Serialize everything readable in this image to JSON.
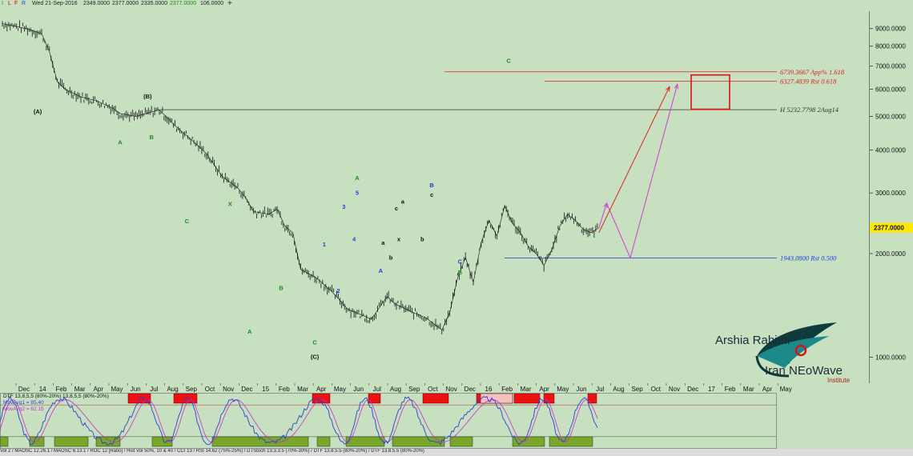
{
  "toolbar": {
    "date": "Wed 21-Sep-2016",
    "open": "2349.0000",
    "high": "2377.0000",
    "low": "2335.0000",
    "close": "2377.0000",
    "volume": "106.0000",
    "flags": [
      "I",
      "L",
      "F",
      "R"
    ],
    "add_icon": "plus-icon"
  },
  "chart_data": {
    "type": "line",
    "scale": "log",
    "ylim": [
      850,
      10000
    ],
    "price_ticks": [
      1000,
      2000,
      3000,
      4000,
      5000,
      6000,
      7000,
      8000,
      9000
    ],
    "price_tick_labels": [
      "1000.0000",
      "2000.0000",
      "3000.0000",
      "4000.0000",
      "5000.0000",
      "6000.0000",
      "7000.0000",
      "8000.0000",
      "9000.0000"
    ],
    "last_price": 2377.0,
    "last_price_label": "2377.0000",
    "date_labels": [
      "Dec",
      "14",
      "Feb",
      "Mar",
      "Apr",
      "May",
      "Jun",
      "Jul",
      "Aug",
      "Sep",
      "Oct",
      "Nov",
      "Dec",
      "15",
      "Feb",
      "Mar",
      "Apr",
      "May",
      "Jun",
      "Jul",
      "Aug",
      "Sep",
      "Oct",
      "Nov",
      "Dec",
      "16",
      "Feb",
      "Mar",
      "Apr",
      "May",
      "Jun",
      "Jul",
      "Aug",
      "Sep",
      "Oct",
      "Nov",
      "Dec",
      "17",
      "Feb",
      "Mar",
      "Apr",
      "May"
    ],
    "price_path": [
      {
        "t": 0,
        "v": 9300
      },
      {
        "t": 3,
        "v": 9000
      },
      {
        "t": 5,
        "v": 8700
      },
      {
        "t": 6,
        "v": 7700
      },
      {
        "t": 7,
        "v": 6300
      },
      {
        "t": 8,
        "v": 6000
      },
      {
        "t": 10,
        "v": 5700
      },
      {
        "t": 12,
        "v": 5550
      },
      {
        "t": 14,
        "v": 5300
      },
      {
        "t": 15,
        "v": 5100
      },
      {
        "t": 17,
        "v": 5000
      },
      {
        "t": 20,
        "v": 5230
      },
      {
        "t": 22,
        "v": 4700
      },
      {
        "t": 24,
        "v": 4300
      },
      {
        "t": 26,
        "v": 3900
      },
      {
        "t": 28,
        "v": 3350
      },
      {
        "t": 30,
        "v": 3100
      },
      {
        "t": 31,
        "v": 2900
      },
      {
        "t": 32,
        "v": 2650
      },
      {
        "t": 34,
        "v": 2600
      },
      {
        "t": 35,
        "v": 2700
      },
      {
        "t": 36,
        "v": 2400
      },
      {
        "t": 37,
        "v": 2300
      },
      {
        "t": 38,
        "v": 1800
      },
      {
        "t": 40,
        "v": 1700
      },
      {
        "t": 42,
        "v": 1550
      },
      {
        "t": 44,
        "v": 1380
      },
      {
        "t": 46,
        "v": 1320
      },
      {
        "t": 47,
        "v": 1290
      },
      {
        "t": 49,
        "v": 1500
      },
      {
        "t": 50,
        "v": 1430
      },
      {
        "t": 52,
        "v": 1360
      },
      {
        "t": 54,
        "v": 1300
      },
      {
        "t": 56,
        "v": 1200
      },
      {
        "t": 57,
        "v": 1350
      },
      {
        "t": 58,
        "v": 1700
      },
      {
        "t": 59,
        "v": 1950
      },
      {
        "t": 60,
        "v": 1650
      },
      {
        "t": 61,
        "v": 2150
      },
      {
        "t": 62,
        "v": 2500
      },
      {
        "t": 63,
        "v": 2250
      },
      {
        "t": 64,
        "v": 2750
      },
      {
        "t": 65,
        "v": 2450
      },
      {
        "t": 66,
        "v": 2300
      },
      {
        "t": 67,
        "v": 2100
      },
      {
        "t": 68,
        "v": 2000
      },
      {
        "t": 69,
        "v": 1850
      },
      {
        "t": 70,
        "v": 2050
      },
      {
        "t": 71,
        "v": 2400
      },
      {
        "t": 72,
        "v": 2600
      },
      {
        "t": 73,
        "v": 2500
      },
      {
        "t": 74,
        "v": 2350
      },
      {
        "t": 75,
        "v": 2300
      },
      {
        "t": 76,
        "v": 2377
      }
    ],
    "projection": [
      {
        "t": 76,
        "v": 2377
      },
      {
        "t": 77,
        "v": 2800
      },
      {
        "t": 80,
        "v": 1943
      },
      {
        "t": 86,
        "v": 6200
      }
    ],
    "alt_projection": [
      {
        "t": 76,
        "v": 2300
      },
      {
        "t": 85,
        "v": 6100
      }
    ],
    "levels": [
      {
        "label": "6739.3667 App% 1.618",
        "value": 6740,
        "color": "#e0201a"
      },
      {
        "label": "6327.4839 Rst 0.618",
        "value": 6327,
        "color": "#e0201a"
      },
      {
        "label": "H 5232.7798 2Aug14",
        "value": 5233,
        "color": "#333333"
      },
      {
        "label": "1943.0800 Rst 0.500",
        "value": 1943,
        "color": "#1a3fdc"
      }
    ],
    "target_box": {
      "v_low": 5250,
      "v_high": 6600
    },
    "wave_labels": [
      {
        "text": "(A)",
        "t": 4.5,
        "v": 5100,
        "color": "#111111"
      },
      {
        "text": "(B)",
        "t": 18.5,
        "v": 5650,
        "color": "#111111"
      },
      {
        "text": "A",
        "t": 15,
        "v": 4150,
        "color": "#1e8a1e"
      },
      {
        "text": "B",
        "t": 19,
        "v": 4300,
        "color": "#1e8a1e"
      },
      {
        "text": "C",
        "t": 23.5,
        "v": 2450,
        "color": "#1e8a1e"
      },
      {
        "text": "X",
        "t": 29,
        "v": 2750,
        "color": "#1e8a1e"
      },
      {
        "text": "A",
        "t": 31.5,
        "v": 1170,
        "color": "#1e8a1e"
      },
      {
        "text": "B",
        "t": 35.5,
        "v": 1570,
        "color": "#1e8a1e"
      },
      {
        "text": "C",
        "t": 39.8,
        "v": 1090,
        "color": "#1e8a1e"
      },
      {
        "text": "(C)",
        "t": 39.8,
        "v": 990,
        "color": "#111111"
      },
      {
        "text": "1",
        "t": 41,
        "v": 2100,
        "color": "#1a3fdc"
      },
      {
        "text": "2",
        "t": 42.8,
        "v": 1540,
        "color": "#1a3fdc"
      },
      {
        "text": "3",
        "t": 43.5,
        "v": 2700,
        "color": "#1a3fdc"
      },
      {
        "text": "4",
        "t": 44.8,
        "v": 2170,
        "color": "#1a3fdc"
      },
      {
        "text": "5",
        "t": 45.2,
        "v": 2960,
        "color": "#1a3fdc"
      },
      {
        "text": "A",
        "t": 45.2,
        "v": 3270,
        "color": "#1e8a1e"
      },
      {
        "text": "a",
        "t": 48.5,
        "v": 2120,
        "color": "#111111"
      },
      {
        "text": "b",
        "t": 49.5,
        "v": 1920,
        "color": "#111111"
      },
      {
        "text": "A",
        "t": 48.2,
        "v": 1760,
        "color": "#1a3fdc"
      },
      {
        "text": "c",
        "t": 50.2,
        "v": 2670,
        "color": "#111111"
      },
      {
        "text": "a",
        "t": 51,
        "v": 2790,
        "color": "#111111"
      },
      {
        "text": "x",
        "t": 50.5,
        "v": 2170,
        "color": "#111111"
      },
      {
        "text": "b",
        "t": 53.5,
        "v": 2170,
        "color": "#111111"
      },
      {
        "text": "c",
        "t": 54.7,
        "v": 2920,
        "color": "#111111"
      },
      {
        "text": "B",
        "t": 54.7,
        "v": 3120,
        "color": "#1a3fdc"
      },
      {
        "text": "C",
        "t": 58.3,
        "v": 1870,
        "color": "#1a3fdc"
      },
      {
        "text": "B",
        "t": 58.3,
        "v": 1740,
        "color": "#1e8a1e"
      },
      {
        "text": "C",
        "t": 64.5,
        "v": 7150,
        "color": "#1e8a1e"
      }
    ],
    "oscillator": {
      "legend": [
        "DTF 13,8,5,5 (80%-20%) 13,8,5,5 (80%-20%)",
        "MovAvg1 = 85.40",
        "MovAvg2 = 62.15"
      ],
      "upper": 80,
      "lower": 20
    }
  },
  "logo": {
    "name": "Arshia Rahimi",
    "line2": "Iran NEoWave",
    "line3": "Institute"
  },
  "status_bar": {
    "text": "Vol 2 / MAOSC 12.26.1 / MAOSC 6.13.1 / ROC 12 [Ratio] / Hist Vol 50%, 10 & 40 / CCI 13 / RSI 14.62 (75%-25%) / DTStoch 13.3.3.5 (70%-30%) / DTF 13.8.5.5 (80%-20%) / DTF 13.8.5.5 (80%-20%)"
  },
  "colors": {
    "background": "#c6e0c0",
    "price": "#111111",
    "projection_red": "#e0201a",
    "projection_magenta": "#d43cd4",
    "oscillator_blue": "#2a3fd8",
    "oscillator_magenta": "#cc2ccc",
    "overbought_zone": "#ee1111",
    "oversold_zone": "#7aa62a"
  }
}
